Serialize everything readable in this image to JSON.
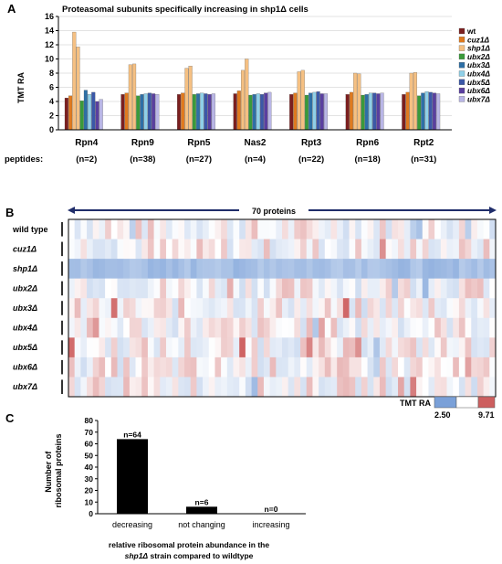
{
  "panel_labels": {
    "a": "A",
    "b": "B",
    "c": "C"
  },
  "colors": {
    "series": [
      "#7b1f1f",
      "#e07a1e",
      "#f5c082",
      "#3a9a3a",
      "#2d6fa6",
      "#8fd0e8",
      "#3b58a8",
      "#5a3fa0",
      "#b9b6e6"
    ],
    "heat_low": "#7aa0d8",
    "heat_mid": "#ffffff",
    "heat_high": "#cd5f5f"
  },
  "chart_data": [
    {
      "type": "bar",
      "title": "Proteasomal subunits specifically increasing in shp1Δ cells",
      "ylabel": "TMT RA",
      "ylim": [
        0,
        16
      ],
      "yticks": [
        "0",
        "2",
        "4",
        "6",
        "8",
        "10",
        "12",
        "14",
        "16"
      ],
      "categories": [
        "Rpn4",
        "Rpn9",
        "Rpn5",
        "Nas2",
        "Rpt3",
        "Rpn6",
        "Rpt2"
      ],
      "peptides_label": "peptides:",
      "peptides": [
        "(n=2)",
        "(n=38)",
        "(n=27)",
        "(n=4)",
        "(n=22)",
        "(n=18)",
        "(n=31)"
      ],
      "series": [
        {
          "name": "wt",
          "values": [
            4.5,
            5.0,
            5.0,
            5.1,
            5.0,
            5.0,
            5.0
          ]
        },
        {
          "name": "cuz1Δ",
          "values": [
            4.8,
            5.2,
            5.2,
            5.5,
            5.2,
            5.3,
            5.3
          ]
        },
        {
          "name": "shp1Δ",
          "values": [
            13.8,
            9.2,
            8.7,
            8.4,
            8.2,
            8.0,
            8.0
          ]
        },
        {
          "name": "ubx2Δ",
          "values": [
            4.1,
            4.8,
            5.0,
            4.9,
            4.9,
            4.9,
            4.8
          ]
        },
        {
          "name": "ubx3Δ",
          "values": [
            5.6,
            5.0,
            5.1,
            5.0,
            5.2,
            5.0,
            5.2
          ]
        },
        {
          "name": "ubx4Δ",
          "values": [
            5.0,
            5.1,
            5.2,
            5.1,
            5.3,
            5.2,
            5.4
          ]
        },
        {
          "name": "ubx5Δ",
          "values": [
            5.3,
            5.2,
            5.1,
            5.0,
            5.4,
            5.2,
            5.3
          ]
        },
        {
          "name": "ubx6Δ",
          "values": [
            4.0,
            5.1,
            5.0,
            5.2,
            5.1,
            5.1,
            5.2
          ]
        },
        {
          "name": "ubx7Δ",
          "values": [
            4.3,
            5.0,
            5.1,
            5.3,
            5.1,
            5.2,
            5.1
          ]
        }
      ],
      "extra_bars": [
        {
          "category": "Rpn4",
          "series": "shp1Δ",
          "value": 11.7
        },
        {
          "category": "Rpn9",
          "series": "shp1Δ",
          "value": 9.3
        },
        {
          "category": "Rpn5",
          "series": "shp1Δ",
          "value": 9.0
        },
        {
          "category": "Nas2",
          "series": "shp1Δ",
          "value": 10.0
        },
        {
          "category": "Rpt3",
          "series": "shp1Δ",
          "value": 8.4
        },
        {
          "category": "Rpn6",
          "series": "shp1Δ",
          "value": 7.9
        },
        {
          "category": "Rpt2",
          "series": "shp1Δ",
          "value": 8.1
        }
      ],
      "legend": [
        "wt",
        "cuz1Δ",
        "shp1Δ",
        "ubx2Δ",
        "ubx3Δ",
        "ubx4Δ",
        "ubx5Δ",
        "ubx6Δ",
        "ubx7Δ"
      ],
      "legend_position": "right"
    },
    {
      "type": "heatmap",
      "header": "70 proteins",
      "rows": [
        "wild type",
        "cuz1Δ",
        "shp1Δ",
        "ubx2Δ",
        "ubx3Δ",
        "ubx4Δ",
        "ubx5Δ",
        "ubx6Δ",
        "ubx7Δ"
      ],
      "columns": 70,
      "scale_label": "TMT RA",
      "scale_min": "2.50",
      "scale_max": "9.71",
      "row_pattern": {
        "shp1Δ": "low",
        "others": "mixed near midpoint"
      }
    },
    {
      "type": "bar",
      "ylabel": "Number of ribosomal proteins",
      "ylim": [
        0,
        80
      ],
      "yticks": [
        "0",
        "10",
        "20",
        "30",
        "40",
        "50",
        "60",
        "70",
        "80"
      ],
      "categories": [
        "decreasing",
        "not changing",
        "increasing"
      ],
      "values": [
        64,
        6,
        0
      ],
      "data_labels": [
        "n=64",
        "n=6",
        "n=0"
      ],
      "xlabel_line1": "relative ribosomal protein abundance in the",
      "xlabel_line2_italic": "shp1Δ",
      "xlabel_line2_rest": " strain compared to wildtype"
    }
  ]
}
